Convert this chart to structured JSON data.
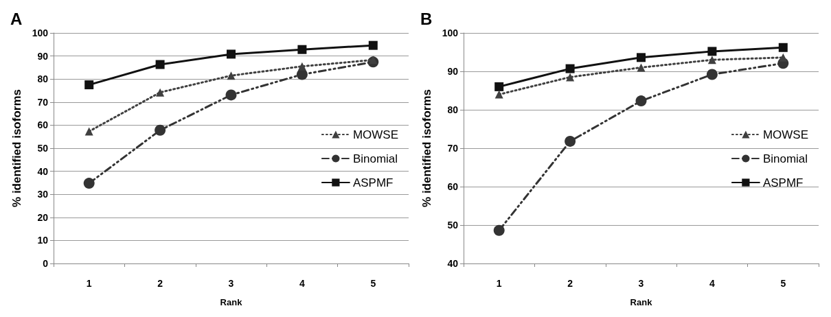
{
  "chart_data": [
    {
      "type": "line",
      "title": "A",
      "xlabel": "Rank",
      "ylabel": "% identified isoforms",
      "categories": [
        "1",
        "2",
        "3",
        "4",
        "5"
      ],
      "ylim": [
        0,
        100
      ],
      "yticks": [
        0,
        10,
        20,
        30,
        40,
        50,
        60,
        70,
        80,
        90,
        100
      ],
      "grid": "y",
      "legend": "right",
      "series": [
        {
          "name": "MOWSE",
          "color": "#404040",
          "marker": "triangle",
          "line_style": "dotted",
          "values": [
            57.3,
            74.2,
            81.5,
            85.5,
            88.3
          ]
        },
        {
          "name": "Binomial",
          "color": "#333333",
          "marker": "circle",
          "line_style": "dashed",
          "values": [
            34.8,
            57.8,
            73.1,
            82.0,
            87.4
          ]
        },
        {
          "name": "ASPMF",
          "color": "#111111",
          "marker": "square",
          "line_style": "solid",
          "values": [
            77.5,
            86.3,
            90.8,
            92.8,
            94.6
          ]
        }
      ]
    },
    {
      "type": "line",
      "title": "B",
      "xlabel": "Rank",
      "ylabel": "% identified isoforms",
      "categories": [
        "1",
        "2",
        "3",
        "4",
        "5"
      ],
      "ylim": [
        40,
        100
      ],
      "yticks": [
        40,
        50,
        60,
        70,
        80,
        90,
        100
      ],
      "grid": "y",
      "legend": "right",
      "series": [
        {
          "name": "MOWSE",
          "color": "#404040",
          "marker": "triangle",
          "line_style": "dotted",
          "values": [
            84.0,
            88.5,
            91.0,
            93.0,
            93.6
          ]
        },
        {
          "name": "Binomial",
          "color": "#333333",
          "marker": "circle",
          "line_style": "dashed",
          "values": [
            48.6,
            71.8,
            82.3,
            89.2,
            92.1
          ]
        },
        {
          "name": "ASPMF",
          "color": "#111111",
          "marker": "square",
          "line_style": "solid",
          "values": [
            86.0,
            90.7,
            93.6,
            95.2,
            96.2
          ]
        }
      ]
    }
  ]
}
